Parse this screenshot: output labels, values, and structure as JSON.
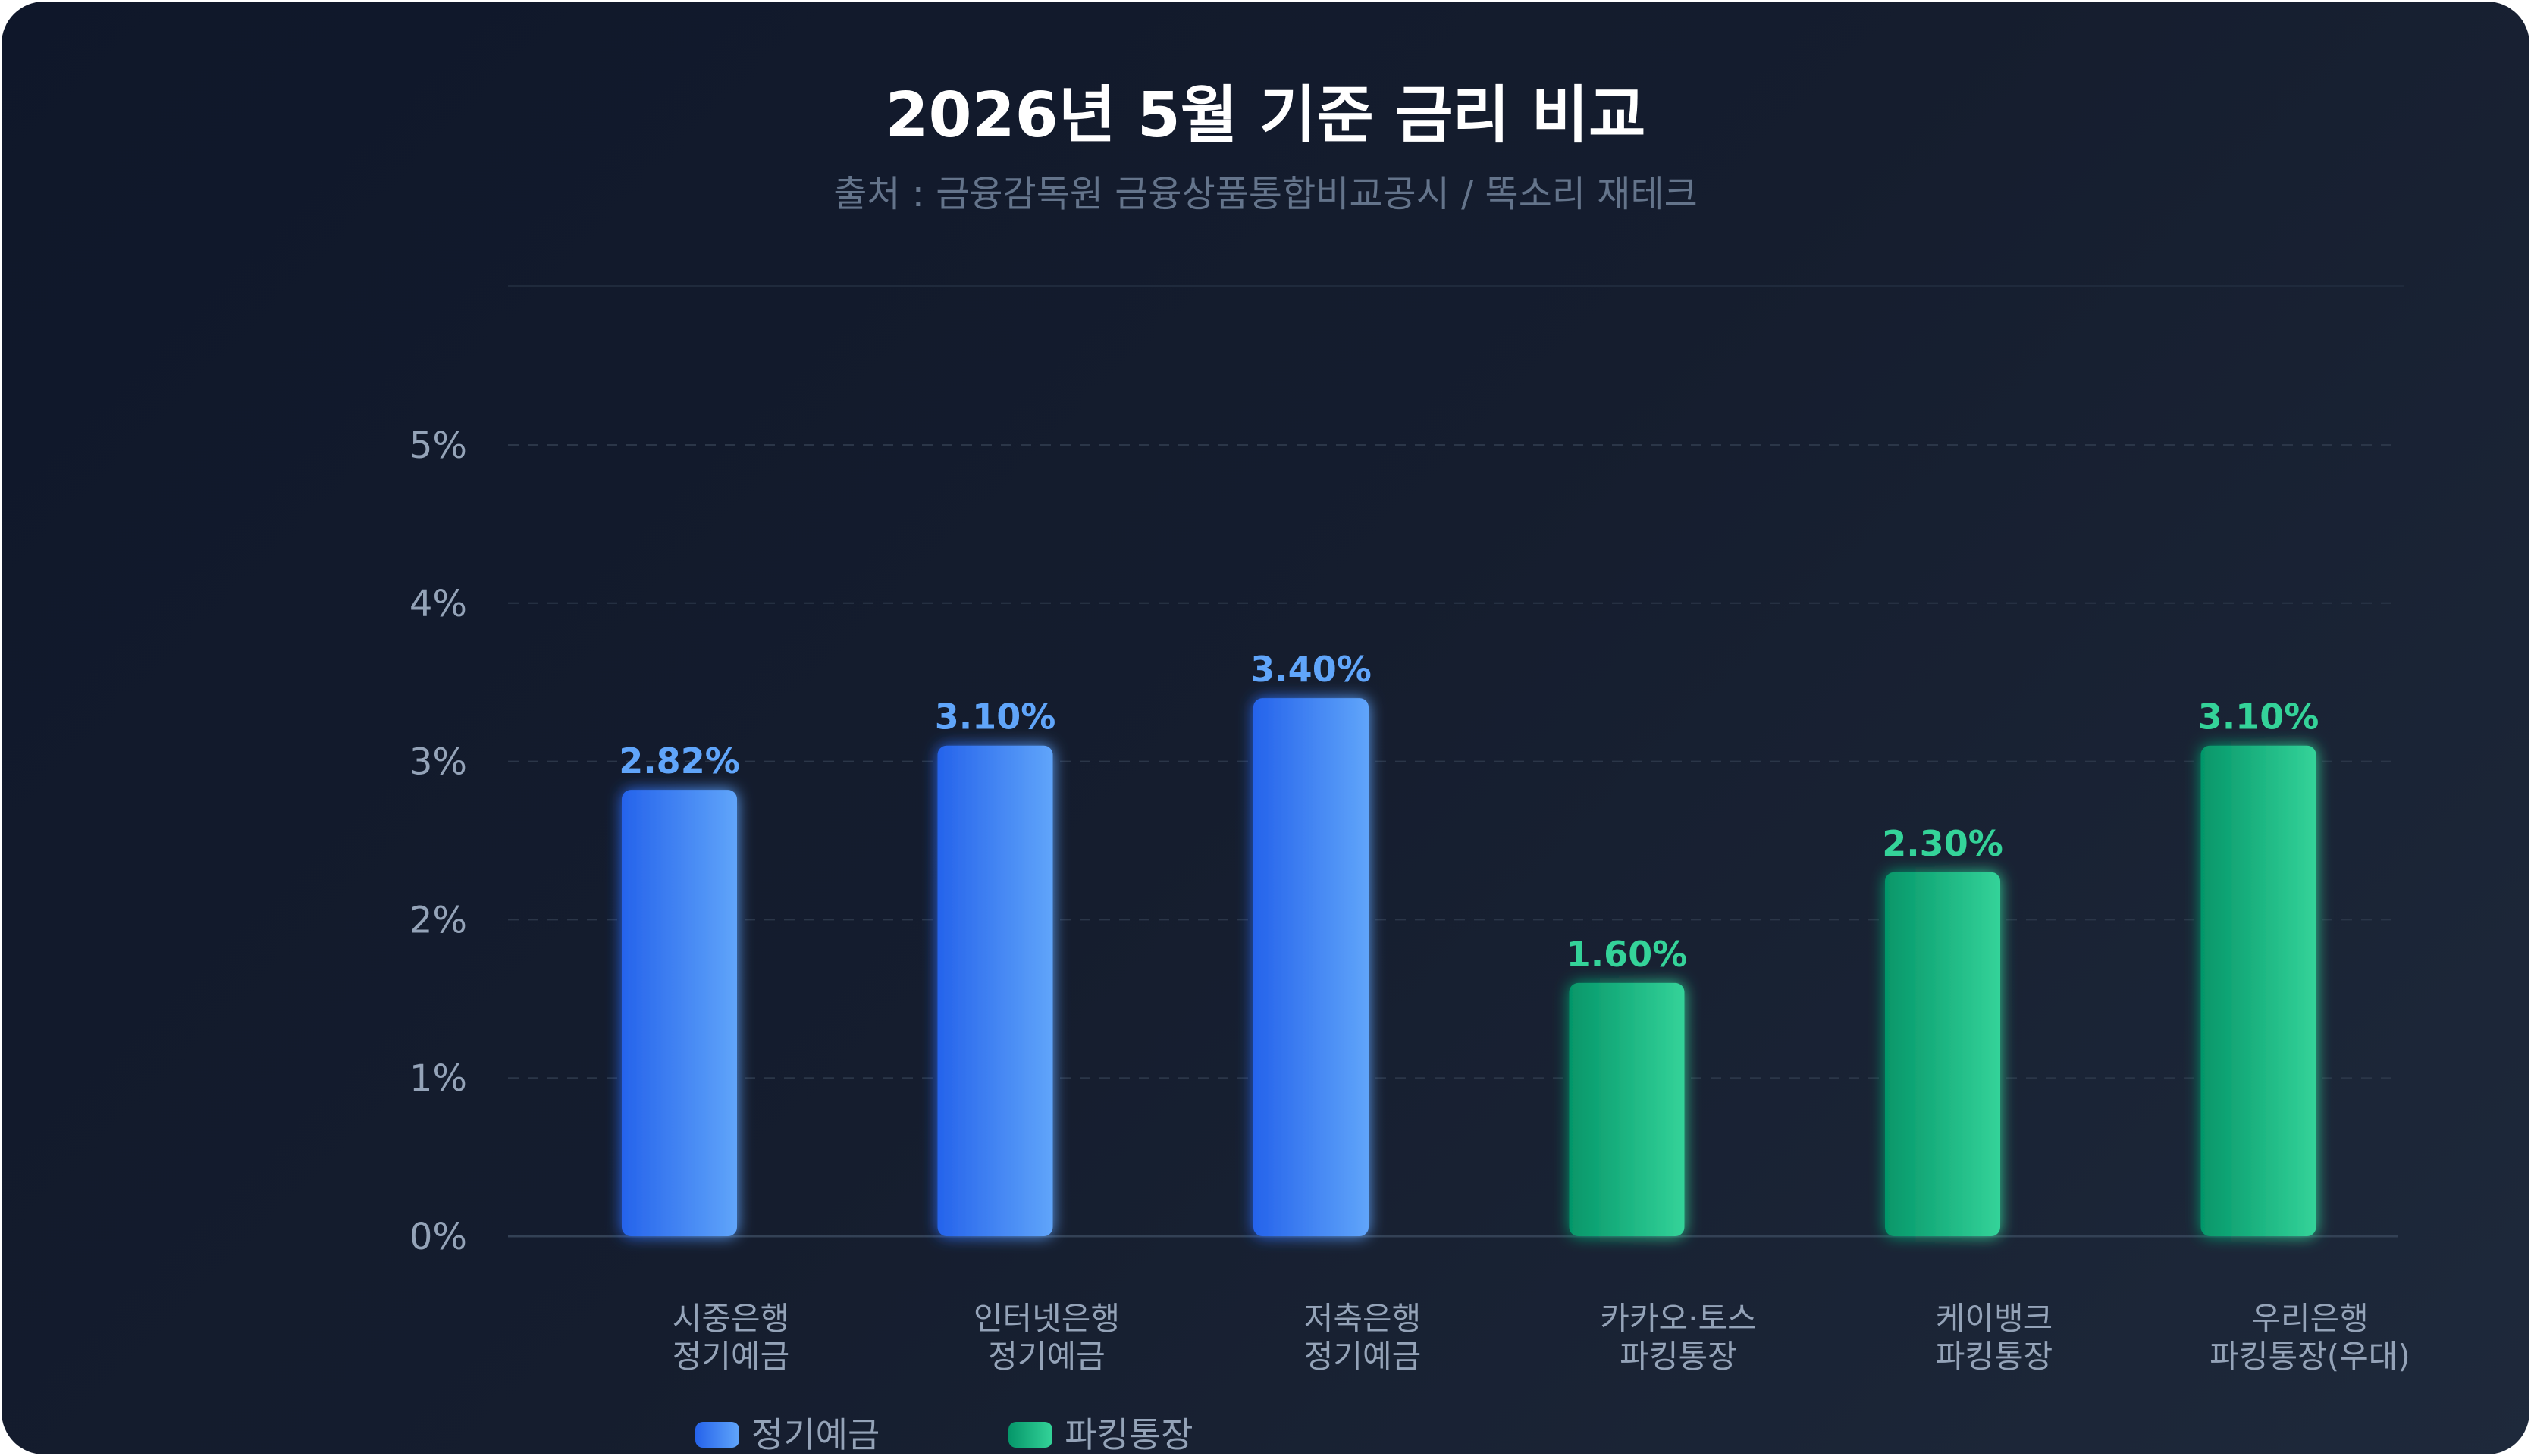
{
  "header": {
    "title": "2026년 5월 기준 금리 비교",
    "subtitle": "출처 : 금융감독원 금융상품통합비교공시 / 똑소리 재테크"
  },
  "chart_data": {
    "type": "bar",
    "title": "2026년 5월 기준 금리 비교",
    "subtitle": "출처 : 금융감독원 금융상품통합비교공시 / 똑소리 재테크",
    "categories": [
      [
        "시중은행",
        "정기예금"
      ],
      [
        "인터넷은행",
        "정기예금"
      ],
      [
        "저축은행",
        "정기예금"
      ],
      [
        "카카오·토스",
        "파킹통장"
      ],
      [
        "케이뱅크",
        "파킹통장"
      ],
      [
        "우리은행",
        "파킹통장(우대)"
      ]
    ],
    "values": [
      2.82,
      3.1,
      3.4,
      1.6,
      2.3,
      3.1
    ],
    "value_labels": [
      "2.82%",
      "3.10%",
      "3.40%",
      "1.60%",
      "2.30%",
      "3.10%"
    ],
    "bar_series": [
      "정기예금",
      "정기예금",
      "정기예금",
      "파킹통장",
      "파킹통장",
      "파킹통장"
    ],
    "ylim": [
      0,
      5
    ],
    "yticks": [
      0,
      1,
      2,
      3,
      4,
      5
    ],
    "ytick_labels": [
      "0%",
      "1%",
      "2%",
      "3%",
      "4%",
      "5%"
    ],
    "grid": true,
    "legend_position": "bottom-left",
    "legend": [
      {
        "name": "정기예금",
        "color_start": "#2563eb",
        "color_end": "#60a5fa",
        "label_color": "#60a5fa"
      },
      {
        "name": "파킹통장",
        "color_start": "#059669",
        "color_end": "#34d399",
        "label_color": "#34d399"
      }
    ]
  }
}
